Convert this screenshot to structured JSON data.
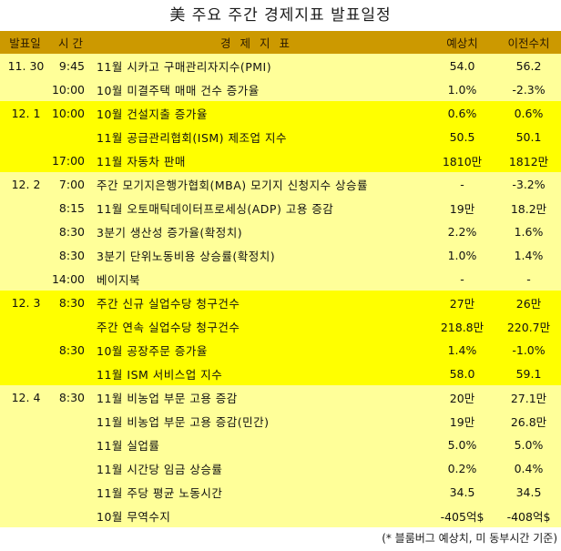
{
  "title": "美 주요 주간 경제지표 발표일정",
  "header": {
    "date": "발표일",
    "time": "시 간",
    "indicator": "경제지표",
    "expected": "예상치",
    "previous": "이전수치"
  },
  "colors": {
    "header_bg": "#CC9900",
    "light_row": "#FFFF99",
    "bright_row": "#FFFF00"
  },
  "rows": [
    {
      "date": "11. 30",
      "time": "9:45",
      "indicator": "11월 시카고 구매관리자지수(PMI)",
      "expected": "54.0",
      "previous": "56.2"
    },
    {
      "date": "",
      "time": "10:00",
      "indicator": "10월 미결주택 매매 건수 증가율",
      "expected": "1.0%",
      "previous": "-2.3%"
    },
    {
      "date": "12. 1",
      "time": "10:00",
      "indicator": "10월 건설지출 증가율",
      "expected": "0.6%",
      "previous": "0.6%"
    },
    {
      "date": "",
      "time": "",
      "indicator": "11월 공급관리협회(ISM) 제조업 지수",
      "expected": "50.5",
      "previous": "50.1"
    },
    {
      "date": "",
      "time": "17:00",
      "indicator": "11월 자동차 판매",
      "expected": "1810만",
      "previous": "1812만"
    },
    {
      "date": "12. 2",
      "time": "7:00",
      "indicator": "주간 모기지은행가협회(MBA) 모기지 신청지수 상승률",
      "expected": "-",
      "previous": "-3.2%"
    },
    {
      "date": "",
      "time": "8:15",
      "indicator": "11월 오토매틱데이터프로세싱(ADP) 고용 증감",
      "expected": "19만",
      "previous": "18.2만"
    },
    {
      "date": "",
      "time": "8:30",
      "indicator": "3분기 생산성 증가율(확정치)",
      "expected": "2.2%",
      "previous": "1.6%"
    },
    {
      "date": "",
      "time": "8:30",
      "indicator": "3분기 단위노동비용 상승률(확정치)",
      "expected": "1.0%",
      "previous": "1.4%"
    },
    {
      "date": "",
      "time": "14:00",
      "indicator": "베이지북",
      "expected": "-",
      "previous": "-"
    },
    {
      "date": "12. 3",
      "time": "8:30",
      "indicator": "주간 신규 실업수당 청구건수",
      "expected": "27만",
      "previous": "26만"
    },
    {
      "date": "",
      "time": "",
      "indicator": "주간 연속 실업수당 청구건수",
      "expected": "218.8만",
      "previous": "220.7만"
    },
    {
      "date": "",
      "time": "8:30",
      "indicator": "10월 공장주문 증가율",
      "expected": "1.4%",
      "previous": "-1.0%"
    },
    {
      "date": "",
      "time": "",
      "indicator": "11월 ISM 서비스업 지수",
      "expected": "58.0",
      "previous": "59.1"
    },
    {
      "date": "12. 4",
      "time": "8:30",
      "indicator": "11월 비농업 부문 고용 증감",
      "expected": "20만",
      "previous": "27.1만"
    },
    {
      "date": "",
      "time": "",
      "indicator": "11월 비농업 부문 고용 증감(민간)",
      "expected": "19만",
      "previous": "26.8만"
    },
    {
      "date": "",
      "time": "",
      "indicator": "11월 실업률",
      "expected": "5.0%",
      "previous": "5.0%"
    },
    {
      "date": "",
      "time": "",
      "indicator": "11월 시간당 임금 상승률",
      "expected": "0.2%",
      "previous": "0.4%"
    },
    {
      "date": "",
      "time": "",
      "indicator": "11월 주당 평균 노동시간",
      "expected": "34.5",
      "previous": "34.5"
    },
    {
      "date": "",
      "time": "",
      "indicator": "10월 무역수지",
      "expected": "-405억$",
      "previous": "-408억$"
    }
  ],
  "footnote": "(* 블룸버그 예상치, 미 동부시간 기준)"
}
